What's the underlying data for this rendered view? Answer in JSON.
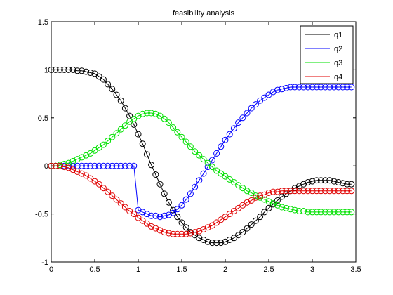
{
  "chart_data": {
    "type": "line",
    "title": "feasibility analysis",
    "xlabel": "",
    "ylabel": "",
    "xlim": [
      0,
      3.5
    ],
    "ylim": [
      -1,
      1.5
    ],
    "xticks": [
      0,
      0.5,
      1,
      1.5,
      2,
      2.5,
      3,
      3.5
    ],
    "yticks": [
      -1,
      -0.5,
      0,
      0.5,
      1,
      1.5
    ],
    "xtick_labels": [
      "0",
      "0.5",
      "1",
      "1.5",
      "2",
      "2.5",
      "3",
      "3.5"
    ],
    "ytick_labels": [
      "-1",
      "-0.5",
      "0",
      "0.5",
      "1",
      "1.5"
    ],
    "grid": false,
    "legend_position": "top-right",
    "marker": "circle",
    "x": [
      0.0,
      0.05,
      0.1,
      0.15,
      0.2,
      0.25,
      0.3,
      0.35,
      0.4,
      0.45,
      0.5,
      0.55,
      0.6,
      0.65,
      0.7,
      0.75,
      0.8,
      0.85,
      0.9,
      0.95,
      1.0,
      1.05,
      1.1,
      1.15,
      1.2,
      1.25,
      1.3,
      1.35,
      1.4,
      1.45,
      1.5,
      1.55,
      1.6,
      1.65,
      1.7,
      1.75,
      1.8,
      1.85,
      1.9,
      1.95,
      2.0,
      2.05,
      2.1,
      2.15,
      2.2,
      2.25,
      2.3,
      2.35,
      2.4,
      2.45,
      2.5,
      2.55,
      2.6,
      2.65,
      2.7,
      2.75,
      2.8,
      2.85,
      2.9,
      2.95,
      3.0,
      3.05,
      3.1,
      3.15,
      3.2,
      3.25,
      3.3,
      3.35,
      3.4,
      3.45
    ],
    "series": [
      {
        "name": "q1",
        "color": "#000000",
        "values": [
          1.0,
          1.0,
          1.0,
          1.0,
          1.0,
          1.0,
          0.99,
          0.99,
          0.98,
          0.97,
          0.96,
          0.93,
          0.9,
          0.85,
          0.8,
          0.74,
          0.68,
          0.6,
          0.52,
          0.43,
          0.33,
          0.23,
          0.12,
          0.01,
          -0.09,
          -0.19,
          -0.29,
          -0.38,
          -0.46,
          -0.53,
          -0.59,
          -0.64,
          -0.69,
          -0.72,
          -0.75,
          -0.77,
          -0.79,
          -0.8,
          -0.8,
          -0.8,
          -0.79,
          -0.77,
          -0.75,
          -0.72,
          -0.69,
          -0.65,
          -0.61,
          -0.57,
          -0.53,
          -0.48,
          -0.44,
          -0.4,
          -0.36,
          -0.32,
          -0.29,
          -0.26,
          -0.23,
          -0.21,
          -0.19,
          -0.17,
          -0.16,
          -0.15,
          -0.15,
          -0.15,
          -0.15,
          -0.16,
          -0.17,
          -0.18,
          -0.19,
          -0.19
        ]
      },
      {
        "name": "q2",
        "color": "#0000ff",
        "values": [
          0.0,
          0.0,
          0.0,
          0.0,
          0.0,
          0.0,
          0.0,
          0.0,
          0.0,
          0.0,
          0.0,
          0.0,
          0.0,
          0.0,
          0.0,
          0.0,
          0.0,
          0.0,
          0.0,
          0.0,
          -0.46,
          -0.48,
          -0.5,
          -0.52,
          -0.52,
          -0.53,
          -0.52,
          -0.51,
          -0.49,
          -0.45,
          -0.41,
          -0.35,
          -0.29,
          -0.22,
          -0.15,
          -0.08,
          -0.01,
          0.06,
          0.13,
          0.2,
          0.27,
          0.33,
          0.39,
          0.45,
          0.5,
          0.55,
          0.6,
          0.64,
          0.68,
          0.71,
          0.74,
          0.77,
          0.79,
          0.8,
          0.81,
          0.82,
          0.82,
          0.82,
          0.82,
          0.82,
          0.82,
          0.82,
          0.82,
          0.82,
          0.82,
          0.82,
          0.82,
          0.82,
          0.82,
          0.82
        ]
      },
      {
        "name": "q3",
        "color": "#00e000",
        "values": [
          0.0,
          0.0,
          0.01,
          0.02,
          0.03,
          0.05,
          0.07,
          0.09,
          0.11,
          0.13,
          0.16,
          0.19,
          0.22,
          0.26,
          0.3,
          0.34,
          0.38,
          0.42,
          0.46,
          0.49,
          0.52,
          0.54,
          0.55,
          0.55,
          0.54,
          0.52,
          0.49,
          0.45,
          0.4,
          0.35,
          0.3,
          0.25,
          0.2,
          0.15,
          0.11,
          0.07,
          0.03,
          -0.01,
          -0.05,
          -0.08,
          -0.11,
          -0.14,
          -0.17,
          -0.2,
          -0.23,
          -0.26,
          -0.28,
          -0.31,
          -0.33,
          -0.35,
          -0.37,
          -0.39,
          -0.41,
          -0.43,
          -0.44,
          -0.45,
          -0.46,
          -0.47,
          -0.47,
          -0.48,
          -0.48,
          -0.48,
          -0.48,
          -0.48,
          -0.48,
          -0.48,
          -0.48,
          -0.48,
          -0.48,
          -0.48
        ]
      },
      {
        "name": "q4",
        "color": "#e00000",
        "values": [
          0.0,
          0.0,
          0.0,
          -0.01,
          -0.02,
          -0.04,
          -0.06,
          -0.08,
          -0.1,
          -0.13,
          -0.16,
          -0.19,
          -0.23,
          -0.27,
          -0.31,
          -0.35,
          -0.39,
          -0.43,
          -0.47,
          -0.5,
          -0.54,
          -0.57,
          -0.6,
          -0.63,
          -0.65,
          -0.67,
          -0.69,
          -0.7,
          -0.71,
          -0.71,
          -0.71,
          -0.71,
          -0.7,
          -0.69,
          -0.68,
          -0.66,
          -0.64,
          -0.62,
          -0.59,
          -0.56,
          -0.53,
          -0.5,
          -0.47,
          -0.44,
          -0.41,
          -0.38,
          -0.36,
          -0.33,
          -0.31,
          -0.3,
          -0.28,
          -0.27,
          -0.27,
          -0.26,
          -0.26,
          -0.26,
          -0.26,
          -0.26,
          -0.26,
          -0.26,
          -0.26,
          -0.26,
          -0.26,
          -0.26,
          -0.26,
          -0.26,
          -0.26,
          -0.26,
          -0.26,
          -0.26
        ]
      }
    ]
  }
}
